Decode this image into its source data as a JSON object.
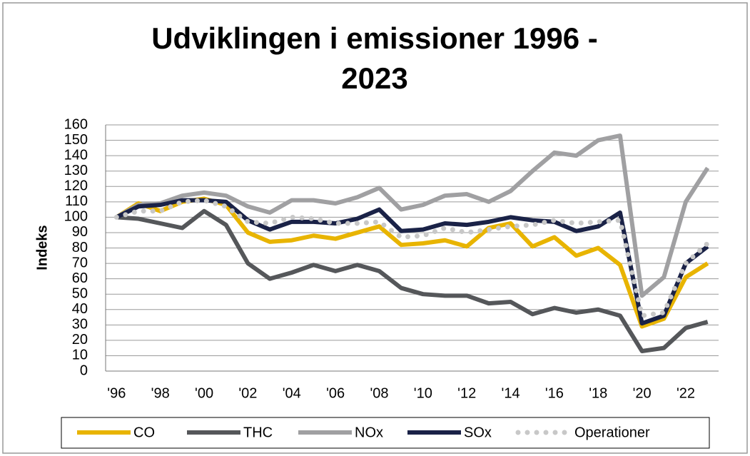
{
  "chart_data": {
    "type": "line",
    "title": "Udviklingen i emissioner 1996 - 2023",
    "y_label": "Indeks",
    "categories": [
      "'96",
      null,
      "'98",
      null,
      "'00",
      null,
      "'02",
      null,
      "'04",
      null,
      "'06",
      null,
      "'08",
      null,
      "'10",
      null,
      "'12",
      null,
      "'14",
      null,
      "'16",
      null,
      "'18",
      null,
      "'20",
      null,
      "'22",
      null
    ],
    "series": [
      {
        "name": "CO",
        "color": "#e8b400",
        "values": [
          100,
          109,
          104,
          110,
          112,
          108,
          90,
          84,
          85,
          88,
          86,
          90,
          94,
          82,
          83,
          85,
          81,
          93,
          96,
          81,
          87,
          75,
          80,
          69,
          29,
          34,
          61,
          70
        ]
      },
      {
        "name": "THC",
        "color": "#55575a",
        "values": [
          100,
          99,
          96,
          93,
          104,
          95,
          70,
          60,
          64,
          69,
          65,
          69,
          65,
          54,
          50,
          49,
          49,
          44,
          45,
          37,
          41,
          38,
          40,
          36,
          13,
          15,
          28,
          32
        ]
      },
      {
        "name": "NOx",
        "color": "#a0a0a2",
        "values": [
          100,
          108,
          109,
          114,
          116,
          114,
          107,
          103,
          111,
          111,
          109,
          113,
          119,
          105,
          108,
          114,
          115,
          110,
          117,
          130,
          142,
          140,
          150,
          153,
          49,
          61,
          110,
          132
        ]
      },
      {
        "name": "SOx",
        "color": "#1a2247",
        "values": [
          100,
          107,
          108,
          111,
          111,
          110,
          98,
          92,
          97,
          97,
          96,
          99,
          105,
          91,
          92,
          96,
          95,
          97,
          100,
          98,
          97,
          91,
          94,
          103,
          31,
          36,
          70,
          81
        ]
      },
      {
        "name": "Operationer",
        "color": "#c8c8c8",
        "line_style": "dotted",
        "values": [
          100,
          104,
          104,
          110,
          111,
          107,
          97,
          96,
          100,
          99,
          96,
          96,
          97,
          87,
          88,
          93,
          90,
          92,
          94,
          95,
          98,
          96,
          97,
          98,
          36,
          38,
          70,
          83
        ]
      }
    ],
    "ylim": [
      0,
      160
    ],
    "yticks": [
      0,
      10,
      20,
      30,
      40,
      50,
      60,
      70,
      80,
      90,
      100,
      110,
      120,
      130,
      140,
      150,
      160
    ],
    "grid": true,
    "legend": "bottom"
  }
}
